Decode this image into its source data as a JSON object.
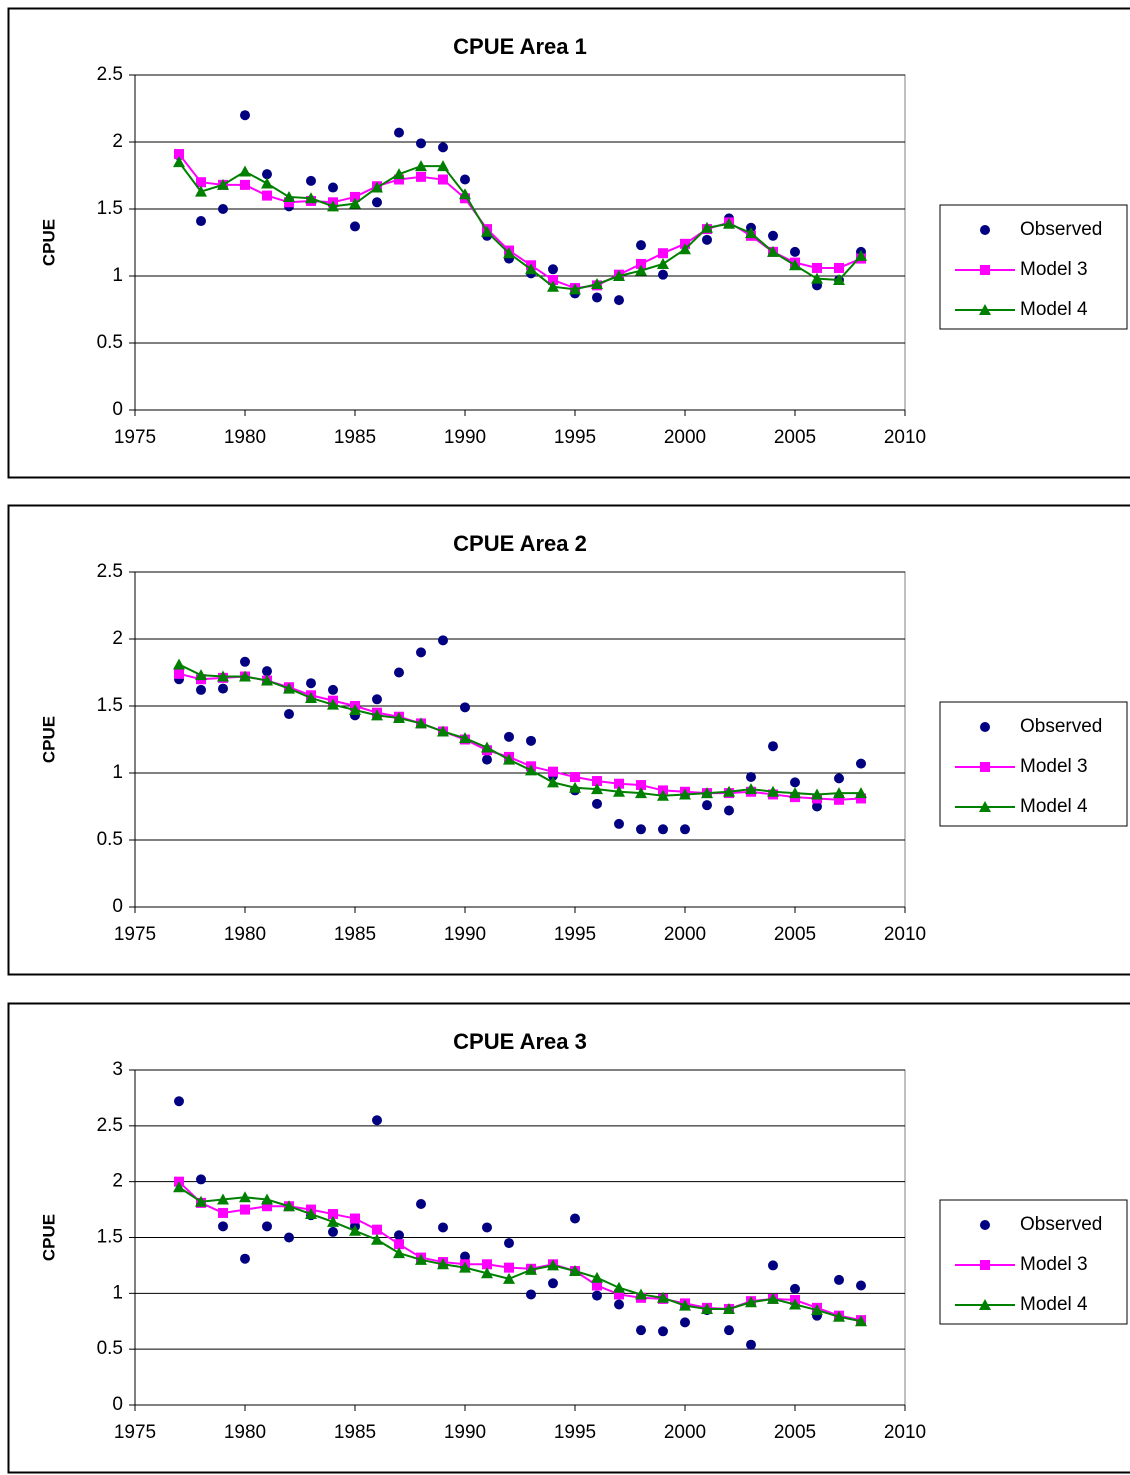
{
  "chart_data": [
    {
      "type": "line",
      "title": "CPUE Area 1",
      "y_label": "CPUE",
      "x": [
        1977,
        1978,
        1979,
        1980,
        1981,
        1982,
        1983,
        1984,
        1985,
        1986,
        1987,
        1988,
        1989,
        1990,
        1991,
        1992,
        1993,
        1994,
        1995,
        1996,
        1997,
        1998,
        1999,
        2000,
        2001,
        2002,
        2003,
        2004,
        2005,
        2006,
        2007,
        2008
      ],
      "series": [
        {
          "name": "Observed",
          "color": "#000080",
          "marker": "circle",
          "line": false,
          "values": [
            1.9,
            1.41,
            1.5,
            2.2,
            1.76,
            1.52,
            1.71,
            1.66,
            1.37,
            1.55,
            2.07,
            1.99,
            1.96,
            1.72,
            1.3,
            1.13,
            1.02,
            1.05,
            0.87,
            0.84,
            0.82,
            1.23,
            1.01,
            1.24,
            1.27,
            1.43,
            1.36,
            1.3,
            1.18,
            0.93,
            0.97,
            1.18
          ]
        },
        {
          "name": "Model 3",
          "color": "#ff00ff",
          "marker": "square",
          "line": true,
          "values": [
            1.91,
            1.7,
            1.68,
            1.68,
            1.6,
            1.55,
            1.56,
            1.55,
            1.59,
            1.67,
            1.72,
            1.74,
            1.72,
            1.58,
            1.35,
            1.19,
            1.08,
            0.97,
            0.91,
            0.93,
            1.01,
            1.09,
            1.17,
            1.24,
            1.35,
            1.4,
            1.3,
            1.18,
            1.1,
            1.06,
            1.06,
            1.13
          ]
        },
        {
          "name": "Model 4",
          "color": "#008000",
          "marker": "triangle",
          "line": true,
          "values": [
            1.85,
            1.63,
            1.68,
            1.78,
            1.69,
            1.59,
            1.58,
            1.52,
            1.54,
            1.66,
            1.76,
            1.82,
            1.82,
            1.61,
            1.33,
            1.17,
            1.05,
            0.92,
            0.9,
            0.94,
            1.0,
            1.04,
            1.09,
            1.2,
            1.36,
            1.39,
            1.32,
            1.18,
            1.08,
            0.98,
            0.97,
            1.15
          ]
        }
      ],
      "xlim": [
        1975,
        2010
      ],
      "xticks": [
        1975,
        1980,
        1985,
        1990,
        1995,
        2000,
        2005,
        2010
      ],
      "ylim": [
        0,
        2.5
      ],
      "yticks": [
        0,
        0.5,
        1,
        1.5,
        2,
        2.5
      ],
      "grid": true,
      "legend": "right"
    },
    {
      "type": "line",
      "title": "CPUE Area 2",
      "y_label": "CPUE",
      "x": [
        1977,
        1978,
        1979,
        1980,
        1981,
        1982,
        1983,
        1984,
        1985,
        1986,
        1987,
        1988,
        1989,
        1990,
        1991,
        1992,
        1993,
        1994,
        1995,
        1996,
        1997,
        1998,
        1999,
        2000,
        2001,
        2002,
        2003,
        2004,
        2005,
        2006,
        2007,
        2008
      ],
      "series": [
        {
          "name": "Observed",
          "color": "#000080",
          "marker": "circle",
          "line": false,
          "values": [
            1.7,
            1.62,
            1.63,
            1.83,
            1.76,
            1.44,
            1.67,
            1.62,
            1.43,
            1.55,
            1.75,
            1.9,
            1.99,
            1.49,
            1.1,
            1.27,
            1.24,
            0.98,
            0.87,
            0.77,
            0.62,
            0.58,
            0.58,
            0.58,
            0.76,
            0.72,
            0.97,
            1.2,
            0.93,
            0.75,
            0.96,
            1.07
          ]
        },
        {
          "name": "Model 3",
          "color": "#ff00ff",
          "marker": "square",
          "line": true,
          "values": [
            1.74,
            1.7,
            1.71,
            1.72,
            1.69,
            1.64,
            1.58,
            1.54,
            1.5,
            1.45,
            1.42,
            1.37,
            1.31,
            1.25,
            1.17,
            1.12,
            1.05,
            1.01,
            0.97,
            0.94,
            0.92,
            0.91,
            0.87,
            0.86,
            0.85,
            0.85,
            0.86,
            0.84,
            0.82,
            0.81,
            0.8,
            0.81
          ]
        },
        {
          "name": "Model 4",
          "color": "#008000",
          "marker": "triangle",
          "line": true,
          "values": [
            1.81,
            1.73,
            1.72,
            1.72,
            1.69,
            1.63,
            1.56,
            1.51,
            1.47,
            1.43,
            1.41,
            1.37,
            1.31,
            1.26,
            1.19,
            1.1,
            1.02,
            0.93,
            0.89,
            0.88,
            0.86,
            0.85,
            0.83,
            0.84,
            0.85,
            0.86,
            0.88,
            0.86,
            0.85,
            0.84,
            0.85,
            0.85
          ]
        }
      ],
      "xlim": [
        1975,
        2010
      ],
      "xticks": [
        1975,
        1980,
        1985,
        1990,
        1995,
        2000,
        2005,
        2010
      ],
      "ylim": [
        0,
        2.5
      ],
      "yticks": [
        0,
        0.5,
        1,
        1.5,
        2,
        2.5
      ],
      "grid": true,
      "legend": "right"
    },
    {
      "type": "line",
      "title": "CPUE Area 3",
      "y_label": "CPUE",
      "x": [
        1977,
        1978,
        1979,
        1980,
        1981,
        1982,
        1983,
        1984,
        1985,
        1986,
        1987,
        1988,
        1989,
        1990,
        1991,
        1992,
        1993,
        1994,
        1995,
        1996,
        1997,
        1998,
        1999,
        2000,
        2001,
        2002,
        2003,
        2004,
        2005,
        2006,
        2007,
        2008
      ],
      "series": [
        {
          "name": "Observed",
          "color": "#000080",
          "marker": "circle",
          "line": false,
          "values": [
            2.72,
            2.02,
            1.6,
            1.31,
            1.6,
            1.5,
            1.7,
            1.55,
            1.6,
            2.55,
            1.52,
            1.8,
            1.59,
            1.33,
            1.59,
            1.45,
            0.99,
            1.09,
            1.67,
            0.98,
            0.9,
            0.67,
            0.66,
            0.74,
            0.85,
            0.67,
            0.54,
            1.25,
            1.04,
            0.8,
            1.12,
            1.07
          ]
        },
        {
          "name": "Model 3",
          "color": "#ff00ff",
          "marker": "square",
          "line": true,
          "values": [
            2.0,
            1.81,
            1.72,
            1.75,
            1.78,
            1.78,
            1.75,
            1.71,
            1.67,
            1.57,
            1.44,
            1.32,
            1.28,
            1.26,
            1.26,
            1.23,
            1.22,
            1.26,
            1.2,
            1.07,
            0.99,
            0.96,
            0.95,
            0.91,
            0.87,
            0.86,
            0.93,
            0.95,
            0.94,
            0.87,
            0.8,
            0.76
          ]
        },
        {
          "name": "Model 4",
          "color": "#008000",
          "marker": "triangle",
          "line": true,
          "values": [
            1.95,
            1.82,
            1.84,
            1.86,
            1.84,
            1.78,
            1.71,
            1.64,
            1.56,
            1.48,
            1.36,
            1.3,
            1.26,
            1.23,
            1.18,
            1.13,
            1.21,
            1.25,
            1.2,
            1.14,
            1.05,
            0.99,
            0.96,
            0.89,
            0.86,
            0.86,
            0.92,
            0.95,
            0.9,
            0.85,
            0.79,
            0.75
          ]
        }
      ],
      "xlim": [
        1975,
        2010
      ],
      "xticks": [
        1975,
        1980,
        1985,
        1990,
        1995,
        2000,
        2005,
        2010
      ],
      "ylim": [
        0,
        3
      ],
      "yticks": [
        0,
        0.5,
        1,
        1.5,
        2,
        2.5,
        3
      ],
      "grid": true,
      "legend": "right"
    }
  ]
}
